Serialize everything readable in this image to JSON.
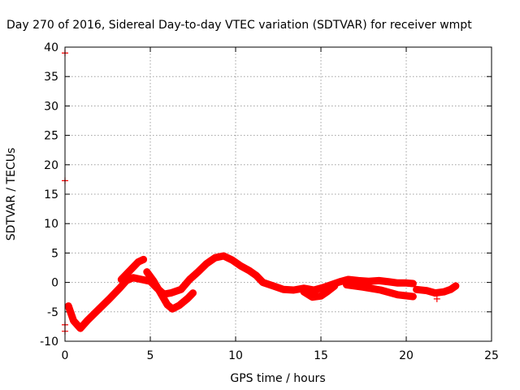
{
  "chart_data": {
    "type": "scatter",
    "title": "Day 270 of 2016, Sidereal Day-to-day VTEC variation (SDTVAR) for receiver wmpt",
    "xlabel": "GPS time / hours",
    "ylabel": "SDTVAR / TECUs",
    "xlim": [
      0,
      25
    ],
    "ylim": [
      -10,
      40
    ],
    "xticks": [
      0,
      5,
      10,
      15,
      20,
      25
    ],
    "yticks": [
      -10,
      -5,
      0,
      5,
      10,
      15,
      20,
      25,
      30,
      35,
      40
    ],
    "grid": true,
    "series_color": "#ff0000",
    "series": [
      {
        "name": "main",
        "points": [
          [
            0.2,
            -4.0
          ],
          [
            0.5,
            -6.5
          ],
          [
            0.9,
            -7.8
          ],
          [
            1.3,
            -6.5
          ],
          [
            2.0,
            -4.5
          ],
          [
            2.6,
            -2.8
          ],
          [
            3.2,
            -1.0
          ],
          [
            3.6,
            0.3
          ],
          [
            4.0,
            0.8
          ],
          [
            4.5,
            0.5
          ],
          [
            5.0,
            0.2
          ],
          [
            5.4,
            -1.0
          ],
          [
            5.8,
            -2.0
          ],
          [
            6.2,
            -1.8
          ],
          [
            6.8,
            -1.2
          ],
          [
            7.3,
            0.5
          ],
          [
            7.8,
            1.8
          ],
          [
            8.3,
            3.2
          ],
          [
            8.8,
            4.2
          ],
          [
            9.3,
            4.5
          ],
          [
            9.8,
            3.8
          ],
          [
            10.3,
            2.8
          ],
          [
            10.8,
            2.0
          ],
          [
            11.2,
            1.2
          ],
          [
            11.6,
            0.0
          ],
          [
            12.2,
            -0.6
          ],
          [
            12.8,
            -1.2
          ],
          [
            13.4,
            -1.3
          ],
          [
            14.0,
            -1.0
          ],
          [
            14.6,
            -1.3
          ],
          [
            15.1,
            -0.9
          ],
          [
            15.6,
            -0.4
          ],
          [
            16.1,
            0.1
          ],
          [
            16.6,
            0.5
          ],
          [
            17.2,
            0.3
          ],
          [
            17.8,
            0.2
          ],
          [
            18.4,
            0.3
          ],
          [
            19.0,
            0.1
          ],
          [
            19.5,
            -0.1
          ],
          [
            20.0,
            -0.1
          ],
          [
            20.4,
            -0.2
          ]
        ]
      },
      {
        "name": "upper-band",
        "points": [
          [
            3.3,
            0.5
          ],
          [
            3.8,
            2.0
          ],
          [
            4.3,
            3.5
          ],
          [
            4.6,
            3.9
          ]
        ]
      },
      {
        "name": "lower-branch-1",
        "points": [
          [
            4.8,
            1.8
          ],
          [
            5.2,
            0.2
          ],
          [
            5.6,
            -1.8
          ],
          [
            6.0,
            -3.8
          ],
          [
            6.3,
            -4.5
          ],
          [
            6.7,
            -3.9
          ],
          [
            7.2,
            -2.7
          ],
          [
            7.5,
            -1.8
          ]
        ]
      },
      {
        "name": "lower-branch-2",
        "points": [
          [
            14.0,
            -1.6
          ],
          [
            14.5,
            -2.5
          ],
          [
            15.0,
            -2.3
          ],
          [
            15.4,
            -1.5
          ],
          [
            15.8,
            -0.6
          ]
        ]
      },
      {
        "name": "lower-branch-3",
        "points": [
          [
            16.5,
            -0.4
          ],
          [
            17.5,
            -0.8
          ],
          [
            18.5,
            -1.3
          ],
          [
            19.5,
            -2.1
          ],
          [
            20.4,
            -2.4
          ]
        ]
      },
      {
        "name": "tail",
        "points": [
          [
            20.6,
            -1.2
          ],
          [
            21.2,
            -1.4
          ],
          [
            21.7,
            -1.8
          ],
          [
            22.2,
            -1.6
          ],
          [
            22.6,
            -1.2
          ],
          [
            22.9,
            -0.6
          ]
        ]
      }
    ],
    "outliers": [
      [
        0,
        39
      ],
      [
        0,
        17.3
      ],
      [
        0,
        -7.2
      ],
      [
        0,
        -8.3
      ],
      [
        21.8,
        -2.8
      ]
    ]
  }
}
